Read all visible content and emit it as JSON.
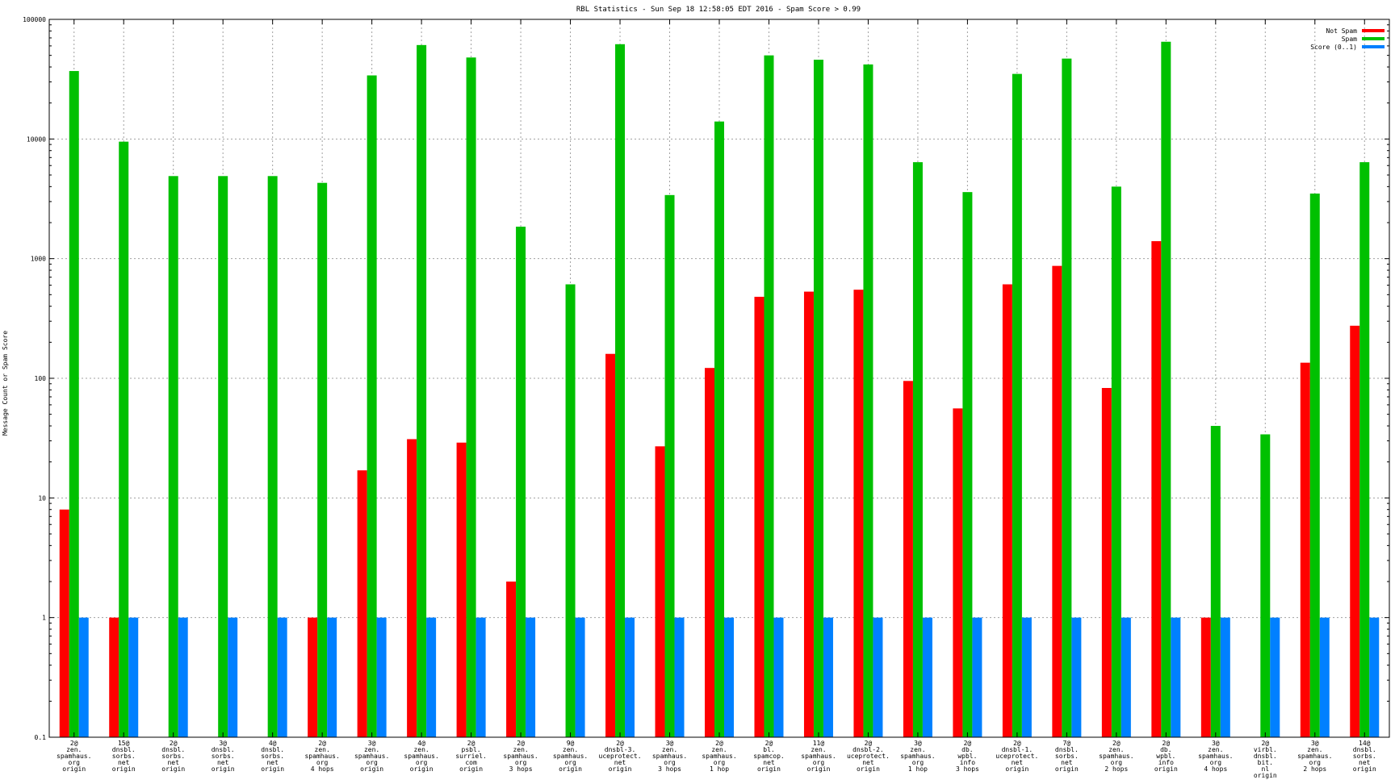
{
  "chart_data": {
    "type": "bar",
    "title": "RBL Statistics - Sun Sep 18 12:58:05 EDT 2016 - Spam Score > 0.99",
    "xlabel": "",
    "ylabel": "Message Count or Spam Score",
    "yscale": "log",
    "ylim": [
      0.1,
      100000
    ],
    "yticks": [
      "0.1",
      "1",
      "10",
      "100",
      "1000",
      "10000",
      "100000"
    ],
    "grid": true,
    "legend_position": "top-right",
    "categories": [
      [
        "2@",
        "zen.",
        "spamhaus.",
        "org",
        "origin"
      ],
      [
        "15@",
        "dnsbl.",
        "sorbs.",
        "net",
        "origin"
      ],
      [
        "2@",
        "dnsbl.",
        "sorbs.",
        "net",
        "origin"
      ],
      [
        "3@",
        "dnsbl.",
        "sorbs.",
        "net",
        "origin"
      ],
      [
        "4@",
        "dnsbl.",
        "sorbs.",
        "net",
        "origin"
      ],
      [
        "2@",
        "zen.",
        "spamhaus.",
        "org",
        "4 hops"
      ],
      [
        "3@",
        "zen.",
        "spamhaus.",
        "org",
        "origin"
      ],
      [
        "4@",
        "zen.",
        "spamhaus.",
        "org",
        "origin"
      ],
      [
        "2@",
        "psbl.",
        "surriel.",
        "com",
        "origin"
      ],
      [
        "2@",
        "zen.",
        "spamhaus.",
        "org",
        "3 hops"
      ],
      [
        "9@",
        "zen.",
        "spamhaus.",
        "org",
        "origin"
      ],
      [
        "2@",
        "dnsbl-3.",
        "uceprotect.",
        "net",
        "origin"
      ],
      [
        "3@",
        "zen.",
        "spamhaus.",
        "org",
        "3 hops"
      ],
      [
        "2@",
        "zen.",
        "spamhaus.",
        "org",
        "1 hop"
      ],
      [
        "2@",
        "bl.",
        "spamcop.",
        "net",
        "origin"
      ],
      [
        "11@",
        "zen.",
        "spamhaus.",
        "org",
        "origin"
      ],
      [
        "2@",
        "dnsbl-2.",
        "uceprotect.",
        "net",
        "origin"
      ],
      [
        "3@",
        "zen.",
        "spamhaus.",
        "org",
        "1 hop"
      ],
      [
        "2@",
        "db.",
        "wpbl.",
        "info",
        "3 hops"
      ],
      [
        "2@",
        "dnsbl-1.",
        "uceprotect.",
        "net",
        "origin"
      ],
      [
        "7@",
        "dnsbl.",
        "sorbs.",
        "net",
        "origin"
      ],
      [
        "2@",
        "zen.",
        "spamhaus.",
        "org",
        "2 hops"
      ],
      [
        "2@",
        "db.",
        "wpbl.",
        "info",
        "origin"
      ],
      [
        "3@",
        "zen.",
        "spamhaus.",
        "org",
        "4 hops"
      ],
      [
        "2@",
        "virbl.",
        "dnsbl.",
        "bit.",
        "nl",
        "origin"
      ],
      [
        "3@",
        "zen.",
        "spamhaus.",
        "org",
        "2 hops"
      ],
      [
        "14@",
        "dnsbl.",
        "sorbs.",
        "net",
        "origin"
      ]
    ],
    "series": [
      {
        "name": "Not Spam",
        "color": "#ff0000",
        "values": [
          8,
          1,
          null,
          null,
          null,
          1,
          17,
          31,
          29,
          2,
          null,
          160,
          27,
          122,
          480,
          530,
          550,
          95,
          56,
          610,
          870,
          83,
          1400,
          1,
          null,
          135,
          275
        ]
      },
      {
        "name": "Spam",
        "color": "#00c000",
        "values": [
          37000,
          9500,
          4900,
          4900,
          4900,
          4300,
          34000,
          61000,
          48000,
          1850,
          610,
          62000,
          3400,
          14000,
          50000,
          46000,
          42000,
          6400,
          3600,
          35000,
          47000,
          4000,
          65000,
          40,
          34,
          3500,
          6400
        ]
      },
      {
        "name": "Score (0..1)",
        "color": "#0080ff",
        "values": [
          1,
          1,
          1,
          1,
          1,
          1,
          1,
          1,
          1,
          1,
          1,
          1,
          1,
          1,
          1,
          1,
          1,
          1,
          1,
          1,
          1,
          1,
          1,
          1,
          1,
          1,
          1
        ]
      }
    ]
  }
}
